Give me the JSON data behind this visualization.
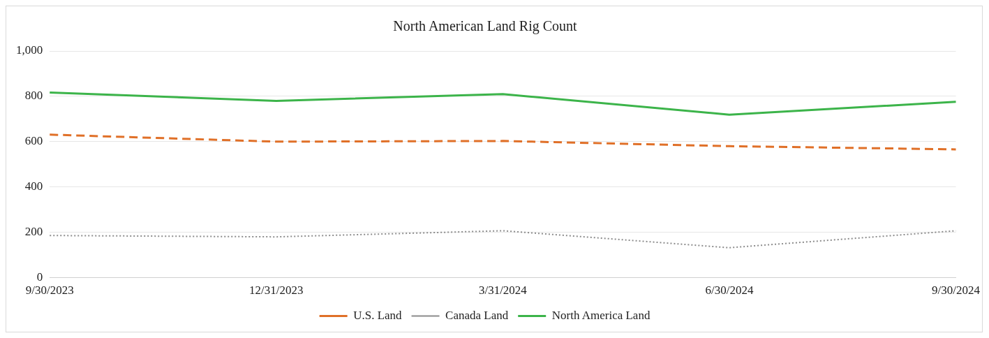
{
  "chart_data": {
    "type": "line",
    "title": "North American Land Rig Count",
    "categories": [
      "9/30/2023",
      "12/31/2023",
      "3/31/2024",
      "6/30/2024",
      "9/30/2024"
    ],
    "series": [
      {
        "name": "U.S. Land",
        "color": "#e07028",
        "line_style": "dashed",
        "values": [
          631,
          600,
          603,
          580,
          566
        ]
      },
      {
        "name": "Canada Land",
        "color": "#8c8c8c",
        "line_style": "dotted",
        "values": [
          186,
          180,
          207,
          132,
          207
        ]
      },
      {
        "name": "North America Land",
        "color": "#3cb44a",
        "line_style": "solid",
        "values": [
          817,
          780,
          810,
          719,
          776
        ]
      }
    ],
    "ylim": [
      0,
      1000
    ],
    "yticks": [
      0,
      200,
      400,
      600,
      800,
      {
        "value": 1000,
        "label": "1,000"
      }
    ],
    "grid": "y",
    "legend": "bottom",
    "marker": "none"
  }
}
